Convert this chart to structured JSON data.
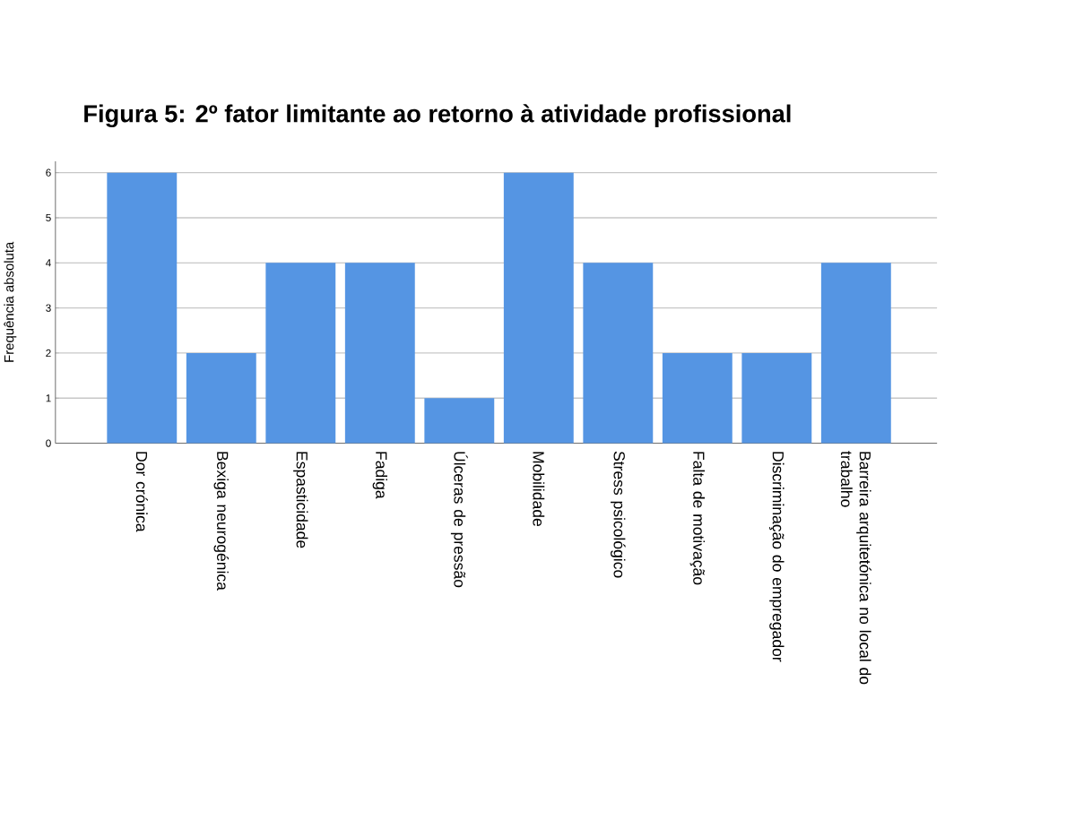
{
  "chart_data": {
    "type": "bar",
    "title": "Figura 5: 2º fator limitante ao retorno à atividade profissional",
    "ylabel": "Frequência absoluta",
    "categories": [
      "Dor crónica",
      "Bexiga neurogénica",
      "Espasticidade",
      "Fadiga",
      "Úlceras de pressão",
      "Mobilidade",
      "Stress psicológico",
      "Falta de motivação",
      "Discriminação do empregador",
      "Barreira arquitetónica no local do trabalho"
    ],
    "values": [
      6,
      2,
      4,
      4,
      1,
      6,
      4,
      2,
      2,
      4
    ],
    "color": "#5595e3",
    "ylim": [
      0,
      6.25
    ],
    "yticks": [
      0,
      1,
      2,
      3,
      4,
      5,
      6
    ],
    "grid": "y"
  }
}
